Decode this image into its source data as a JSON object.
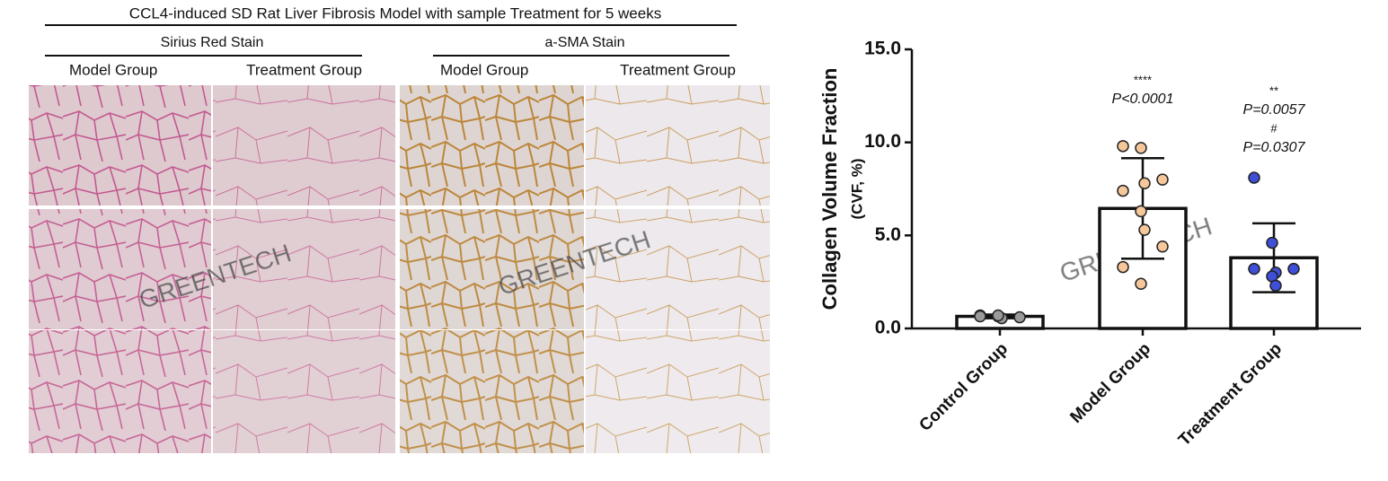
{
  "figure": {
    "title": "CCL4-induced SD Rat Liver Fibrosis Model with sample Treatment for 5 weeks",
    "stains": [
      {
        "title": "Sirius Red Stain",
        "columns": [
          "Model Group",
          "Treatment Group"
        ]
      },
      {
        "title": "a-SMA Stain",
        "columns": [
          "Model Group",
          "Treatment Group"
        ]
      }
    ],
    "watermark": "GREENTECH"
  },
  "chart_data": {
    "type": "bar",
    "ylabel": [
      "Collagen Volume Fraction",
      "(CVF, %)"
    ],
    "categories": [
      "Control Group",
      "Model Group",
      "Treatment Group"
    ],
    "values": [
      0.65,
      6.45,
      3.8
    ],
    "errors": [
      0.1,
      2.7,
      1.85
    ],
    "points": [
      [
        0.7,
        0.65,
        0.55,
        0.6,
        0.65,
        0.7
      ],
      [
        9.8,
        9.7,
        7.8,
        8.0,
        7.4,
        6.3,
        5.3,
        4.4,
        3.3,
        2.4
      ],
      [
        8.1,
        4.6,
        3.0,
        3.2,
        3.2,
        2.8,
        2.3
      ]
    ],
    "point_colors": [
      "#9a9a9a",
      "#f5c79a",
      "#3f4fd8"
    ],
    "bar_color": "#ffffff",
    "annotations": [
      [],
      [
        "****",
        "P<0.0001"
      ],
      [
        "**",
        "P=0.0057",
        "#",
        "P=0.0307"
      ]
    ],
    "ylim": [
      0,
      15
    ],
    "yticks": [
      {
        "value": 0,
        "label": "0.0"
      },
      {
        "value": 5,
        "label": "5.0"
      },
      {
        "value": 10,
        "label": "10.0"
      },
      {
        "value": 15,
        "label": "15.0"
      }
    ]
  }
}
